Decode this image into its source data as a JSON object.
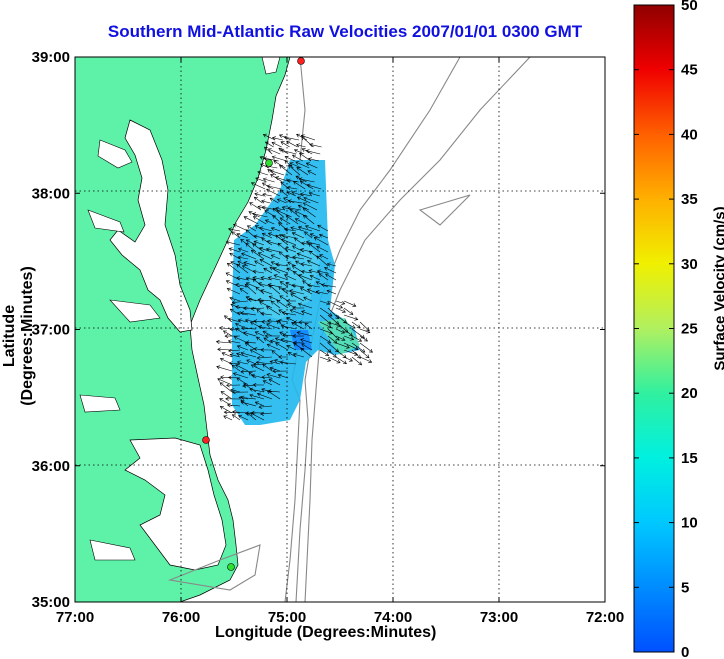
{
  "title": "Southern Mid-Atlantic Raw Velocities 2007/01/01 0300 GMT",
  "x_axis": {
    "label": "Longitude (Degrees:Minutes)",
    "ticks": [
      "77:00",
      "76:00",
      "75:00",
      "74:00",
      "73:00",
      "72:00"
    ]
  },
  "y_axis": {
    "label": "Latitude (Degrees:Minutes)",
    "ticks": [
      "39:00",
      "38:00",
      "37:00",
      "36:00",
      "35:00"
    ]
  },
  "colorbar": {
    "label": "Surface Velocity (cm/s)",
    "ticks": [
      "0",
      "5",
      "10",
      "15",
      "20",
      "25",
      "30",
      "35",
      "40",
      "45",
      "50"
    ],
    "min": 0,
    "max": 50
  },
  "colors": {
    "land": "#5ef2a8",
    "title": "#1010e0",
    "velocity_field": "#1fb8f0"
  },
  "map_extent": {
    "lon_west": -77,
    "lon_east": -72,
    "lat_south": 35,
    "lat_north": 39,
    "grid": "dotted"
  },
  "station_markers": [
    {
      "color": "red"
    },
    {
      "color": "green"
    },
    {
      "color": "red"
    },
    {
      "color": "green"
    }
  ]
}
